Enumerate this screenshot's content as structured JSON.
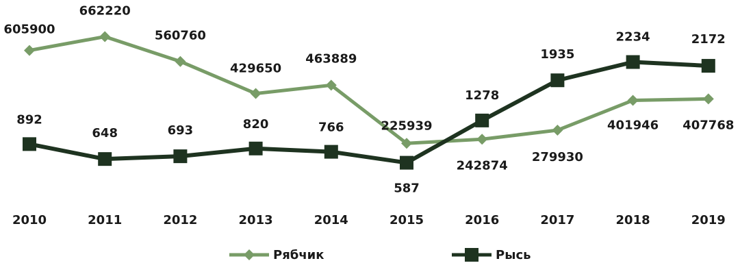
{
  "chart_data": {
    "type": "line",
    "categories": [
      "2010",
      "2011",
      "2012",
      "2013",
      "2014",
      "2015",
      "2016",
      "2017",
      "2018",
      "2019"
    ],
    "series": [
      {
        "name": "Рябчик",
        "color": "#789c67",
        "marker": "diamond",
        "values": [
          605900,
          662220,
          560760,
          429650,
          463889,
          225939,
          242874,
          279930,
          401946,
          407768
        ]
      },
      {
        "name": "Рысь",
        "color": "#1e3320",
        "marker": "square",
        "axis": "y2",
        "values": [
          892,
          648,
          693,
          820,
          766,
          587,
          1278,
          1935,
          2234,
          2172
        ]
      }
    ],
    "ylim": [
      0,
      700000
    ],
    "y2lim": [
      0,
      2800
    ],
    "legend": "bottom"
  }
}
